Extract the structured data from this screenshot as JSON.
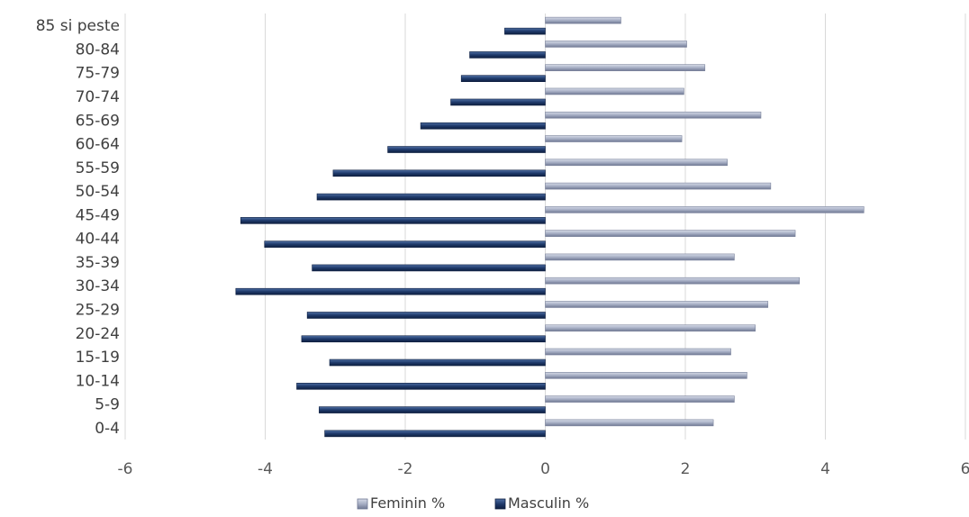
{
  "chart_data": {
    "type": "bar",
    "orientation": "horizontal",
    "categories": [
      "0-4",
      "5-9",
      "10-14",
      "15-19",
      "20-24",
      "25-29",
      "30-34",
      "35-39",
      "40-44",
      "45-49",
      "50-54",
      "55-59",
      "60-64",
      "65-69",
      "70-74",
      "75-79",
      "80-84",
      "85 si peste"
    ],
    "series": [
      {
        "name": "Feminin %",
        "color": "#a9b1c6",
        "values": [
          2.4,
          2.7,
          2.88,
          2.65,
          3.0,
          3.18,
          3.63,
          2.7,
          3.57,
          4.55,
          3.22,
          2.6,
          1.95,
          3.08,
          1.98,
          2.28,
          2.02,
          1.08
        ]
      },
      {
        "name": "Masculin %",
        "color": "#1f3a6b",
        "values": [
          -3.15,
          -3.23,
          -3.55,
          -3.08,
          -3.48,
          -3.4,
          -4.42,
          -3.33,
          -4.01,
          -4.35,
          -3.26,
          -3.03,
          -2.25,
          -1.78,
          -1.35,
          -1.2,
          -1.08,
          -0.58
        ]
      }
    ],
    "title": "",
    "xlabel": "",
    "ylabel": "",
    "xlim": [
      -6,
      6
    ],
    "x_ticks": [
      -6,
      -4,
      -2,
      0,
      2,
      4,
      6
    ],
    "grid": true,
    "legend_position": "bottom"
  },
  "legend": {
    "items": [
      "Feminin %",
      "Masculin %"
    ]
  }
}
